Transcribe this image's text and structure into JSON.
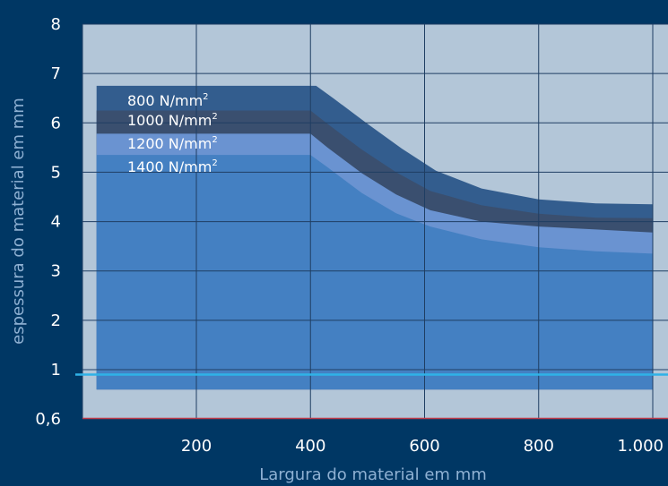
{
  "chart_data": {
    "type": "area",
    "xlabel": "Largura do material em mm",
    "ylabel": "espessura do material em mm",
    "xlim": [
      -10,
      1020
    ],
    "ylim": [
      0.6,
      8
    ],
    "x_ticks": [
      {
        "value": 200,
        "label": "200"
      },
      {
        "value": 400,
        "label": "400"
      },
      {
        "value": 600,
        "label": "600"
      },
      {
        "value": 800,
        "label": "800"
      },
      {
        "value": 1000,
        "label": "1.000"
      }
    ],
    "y_ticks": [
      {
        "value": 0.6,
        "label": "0,6"
      },
      {
        "value": 1,
        "label": "1"
      },
      {
        "value": 2,
        "label": "2"
      },
      {
        "value": 3,
        "label": "3"
      },
      {
        "value": 4,
        "label": "4"
      },
      {
        "value": 5,
        "label": "5"
      },
      {
        "value": 6,
        "label": "6"
      },
      {
        "value": 7,
        "label": "7"
      },
      {
        "value": 8,
        "label": "8"
      }
    ],
    "grid": true,
    "background_color": "#003764",
    "plot_background_color": "#b3c6d8",
    "grid_color": "#1f3e63",
    "horizontal_line": {
      "y": 0.9,
      "color": "#2fb2e7"
    },
    "baseline_color": "#c03b4a",
    "series": [
      {
        "name": "800 N/mm",
        "unit_suffix": "2",
        "color": "#335d8e",
        "points": [
          [
            25,
            6.75
          ],
          [
            410,
            6.75
          ],
          [
            440,
            6.5
          ],
          [
            500,
            5.98
          ],
          [
            560,
            5.48
          ],
          [
            620,
            5.03
          ],
          [
            700,
            4.67
          ],
          [
            800,
            4.45
          ],
          [
            900,
            4.37
          ],
          [
            1000,
            4.35
          ]
        ]
      },
      {
        "name": "1000 N/mm",
        "unit_suffix": "2",
        "color": "#3a4f6f",
        "points": [
          [
            25,
            6.25
          ],
          [
            400,
            6.25
          ],
          [
            430,
            5.98
          ],
          [
            490,
            5.46
          ],
          [
            550,
            5.0
          ],
          [
            610,
            4.62
          ],
          [
            700,
            4.33
          ],
          [
            800,
            4.16
          ],
          [
            900,
            4.08
          ],
          [
            1000,
            4.07
          ]
        ]
      },
      {
        "name": "1200 N/mm",
        "unit_suffix": "2",
        "color": "#6a93d1",
        "points": [
          [
            25,
            5.78
          ],
          [
            400,
            5.78
          ],
          [
            430,
            5.5
          ],
          [
            490,
            4.98
          ],
          [
            550,
            4.55
          ],
          [
            610,
            4.23
          ],
          [
            700,
            4.0
          ],
          [
            800,
            3.9
          ],
          [
            900,
            3.84
          ],
          [
            1000,
            3.78
          ]
        ]
      },
      {
        "name": "1400 N/mm",
        "unit_suffix": "2",
        "color": "#4480c2",
        "points": [
          [
            25,
            5.35
          ],
          [
            400,
            5.35
          ],
          [
            430,
            5.1
          ],
          [
            490,
            4.58
          ],
          [
            550,
            4.17
          ],
          [
            610,
            3.9
          ],
          [
            700,
            3.64
          ],
          [
            800,
            3.48
          ],
          [
            900,
            3.4
          ],
          [
            1000,
            3.35
          ]
        ]
      }
    ]
  }
}
